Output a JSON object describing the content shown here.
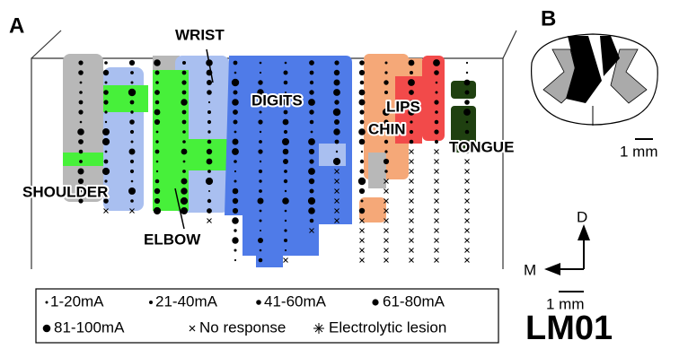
{
  "panels": [
    "A",
    "B"
  ],
  "regions": [
    "WRIST",
    "DIGITS",
    "LIPS",
    "CHIN",
    "TONGUE",
    "SHOULDER",
    "ELBOW"
  ],
  "legend": [
    "1-20mA",
    "21-40mA",
    "41-60mA",
    "61-80mA",
    "81-100mA",
    "No response",
    "Electrolytic lesion"
  ],
  "panel_b_scale": "1 mm",
  "compass": {
    "dorsal": "D",
    "medial": "M",
    "scale": "1 mm"
  },
  "subject": "LM01"
}
